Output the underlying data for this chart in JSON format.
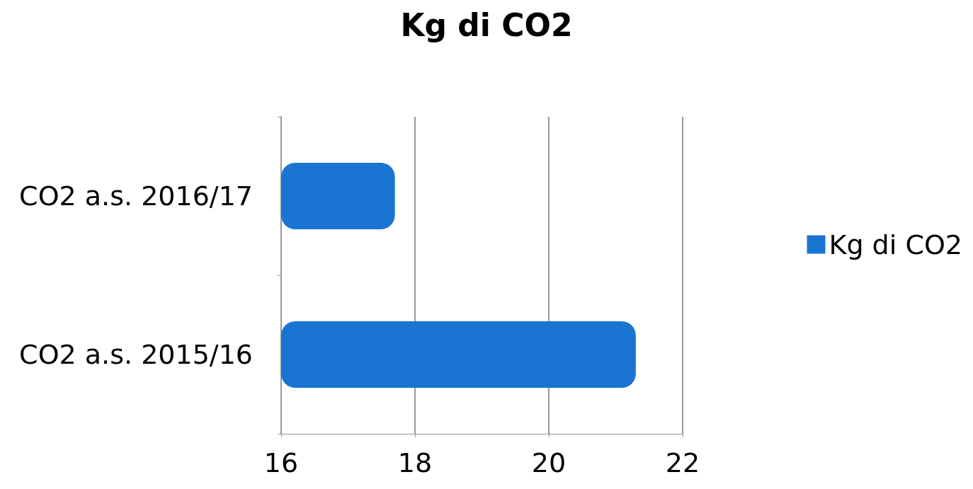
{
  "chart_data": {
    "type": "bar",
    "orientation": "horizontal",
    "title": "Kg di CO2",
    "categories": [
      "CO2 a.s. 2016/17",
      "CO2 a.s. 2015/16"
    ],
    "series": [
      {
        "name": "Kg di CO2",
        "color": "#1a75d2",
        "values": [
          17.7,
          21.3
        ]
      }
    ],
    "xlim": [
      16,
      22
    ],
    "xticks": [
      16,
      18,
      20,
      22
    ],
    "grid": "x",
    "legend": "right"
  }
}
